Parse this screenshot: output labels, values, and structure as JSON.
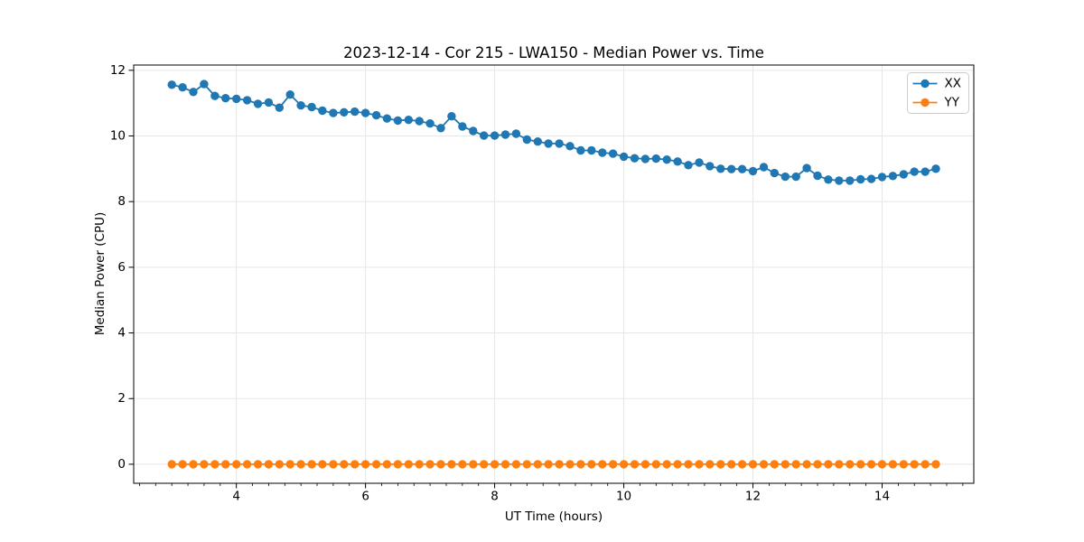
{
  "figure": {
    "background": "#ffffff"
  },
  "chart_data": {
    "type": "line",
    "title": "2023-12-14 - Cor 215 - LWA150 - Median Power vs. Time",
    "xlabel": "UT Time (hours)",
    "ylabel": "Median Power (CPU)",
    "xlim": [
      2.41,
      15.42
    ],
    "ylim": [
      -0.58,
      12.16
    ],
    "xticks": [
      4,
      6,
      8,
      10,
      12,
      14
    ],
    "yticks": [
      0,
      2,
      4,
      6,
      8,
      10,
      12
    ],
    "x_minor_tick_step": 0.25,
    "grid": true,
    "legend": {
      "position": "upper right",
      "entries": [
        "XX",
        "YY"
      ]
    },
    "colors": {
      "xx": "#1f77b4",
      "yy": "#ff7f0e",
      "grid": "#e7e7e7",
      "spine": "#000000",
      "legend_border": "#cccccc"
    },
    "x": [
      3.0,
      3.167,
      3.333,
      3.5,
      3.667,
      3.833,
      4.0,
      4.167,
      4.333,
      4.5,
      4.667,
      4.833,
      5.0,
      5.167,
      5.333,
      5.5,
      5.667,
      5.833,
      6.0,
      6.167,
      6.333,
      6.5,
      6.667,
      6.833,
      7.0,
      7.167,
      7.333,
      7.5,
      7.667,
      7.833,
      8.0,
      8.167,
      8.333,
      8.5,
      8.667,
      8.833,
      9.0,
      9.167,
      9.333,
      9.5,
      9.667,
      9.833,
      10.0,
      10.167,
      10.333,
      10.5,
      10.667,
      10.833,
      11.0,
      11.167,
      11.333,
      11.5,
      11.667,
      11.833,
      12.0,
      12.167,
      12.333,
      12.5,
      12.667,
      12.833,
      13.0,
      13.167,
      13.333,
      13.5,
      13.667,
      13.833,
      14.0,
      14.167,
      14.333,
      14.5,
      14.667,
      14.833
    ],
    "series": [
      {
        "name": "XX",
        "color": "#1f77b4",
        "marker": "circle",
        "y": [
          11.56,
          11.48,
          11.34,
          11.58,
          11.22,
          11.15,
          11.13,
          11.09,
          10.98,
          11.02,
          10.86,
          11.26,
          10.93,
          10.88,
          10.77,
          10.7,
          10.72,
          10.74,
          10.7,
          10.63,
          10.53,
          10.47,
          10.49,
          10.45,
          10.38,
          10.24,
          10.6,
          10.29,
          10.15,
          10.01,
          10.01,
          10.04,
          10.07,
          9.89,
          9.83,
          9.77,
          9.77,
          9.69,
          9.56,
          9.56,
          9.49,
          9.46,
          9.37,
          9.32,
          9.3,
          9.31,
          9.28,
          9.22,
          9.11,
          9.19,
          9.08,
          9.0,
          8.99,
          8.99,
          8.93,
          9.05,
          8.87,
          8.76,
          8.76,
          9.02,
          8.79,
          8.67,
          8.64,
          8.64,
          8.68,
          8.69,
          8.75,
          8.78,
          8.83,
          8.91,
          8.91,
          9.0
        ]
      },
      {
        "name": "YY",
        "color": "#ff7f0e",
        "marker": "circle",
        "y": [
          0,
          0,
          0,
          0,
          0,
          0,
          0,
          0,
          0,
          0,
          0,
          0,
          0,
          0,
          0,
          0,
          0,
          0,
          0,
          0,
          0,
          0,
          0,
          0,
          0,
          0,
          0,
          0,
          0,
          0,
          0,
          0,
          0,
          0,
          0,
          0,
          0,
          0,
          0,
          0,
          0,
          0,
          0,
          0,
          0,
          0,
          0,
          0,
          0,
          0,
          0,
          0,
          0,
          0,
          0,
          0,
          0,
          0,
          0,
          0,
          0,
          0,
          0,
          0,
          0,
          0,
          0,
          0,
          0,
          0,
          0,
          0
        ]
      }
    ]
  }
}
